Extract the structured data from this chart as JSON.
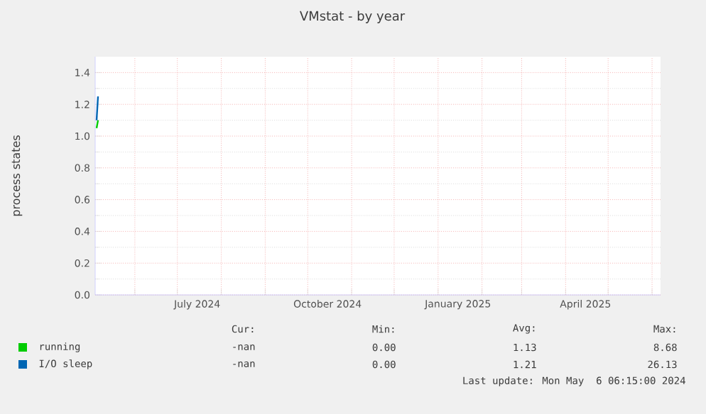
{
  "chart_data": {
    "type": "line",
    "title": "VMstat - by year",
    "ylabel": "process states",
    "series": [
      {
        "name": "running",
        "color": "#00cc00",
        "x": [
          "2024-05-05",
          "2024-05-06"
        ],
        "values": [
          1.05,
          1.1
        ]
      },
      {
        "name": "I/O sleep",
        "color": "#0066b3",
        "x": [
          "2024-05-05",
          "2024-05-06"
        ],
        "values": [
          1.1,
          1.25
        ]
      }
    ],
    "xlim": [
      "2024-05-04",
      "2025-06-07"
    ],
    "xticks": [
      {
        "value": "2024-06-01",
        "label": null
      },
      {
        "value": "2024-07-01",
        "label": null
      },
      {
        "value": "2024-08-01",
        "label": null
      },
      {
        "value": "2024-09-01",
        "label": null
      },
      {
        "value": "2024-10-01",
        "label": null
      },
      {
        "value": "2024-11-01",
        "label": null
      },
      {
        "value": "2024-12-01",
        "label": null
      },
      {
        "value": "2025-01-01",
        "label": null
      },
      {
        "value": "2025-02-01",
        "label": null
      },
      {
        "value": "2025-03-01",
        "label": null
      },
      {
        "value": "2025-04-01",
        "label": null
      },
      {
        "value": "2025-05-01",
        "label": null
      },
      {
        "value": "2025-06-01",
        "label": null
      },
      {
        "value": "2024-07-15",
        "label": "July 2024"
      },
      {
        "value": "2024-10-15",
        "label": "October 2024"
      },
      {
        "value": "2025-01-15",
        "label": "January 2025"
      },
      {
        "value": "2025-04-15",
        "label": "April 2025"
      }
    ],
    "ylim": [
      0,
      1.5
    ],
    "yticks": [
      {
        "value": 0,
        "label": "0.0"
      },
      {
        "value": 0.2,
        "label": "0.2"
      },
      {
        "value": 0.4,
        "label": "0.4"
      },
      {
        "value": 0.6,
        "label": "0.6"
      },
      {
        "value": 0.8,
        "label": "0.8"
      },
      {
        "value": 1.0,
        "label": "1.0"
      },
      {
        "value": 1.2,
        "label": "1.2"
      },
      {
        "value": 1.4,
        "label": "1.4"
      }
    ],
    "grid": true,
    "legend": "bottom",
    "line_style": "solid",
    "marker": "none",
    "annotations": [
      "Cur:",
      "Min:",
      "Avg:",
      "Max:",
      "-nan",
      "0.00",
      "1.13",
      "8.68",
      "-nan",
      "0.00",
      "1.21",
      "26.13",
      "Last update: Mon May  6 06:15:00 2024"
    ]
  }
}
